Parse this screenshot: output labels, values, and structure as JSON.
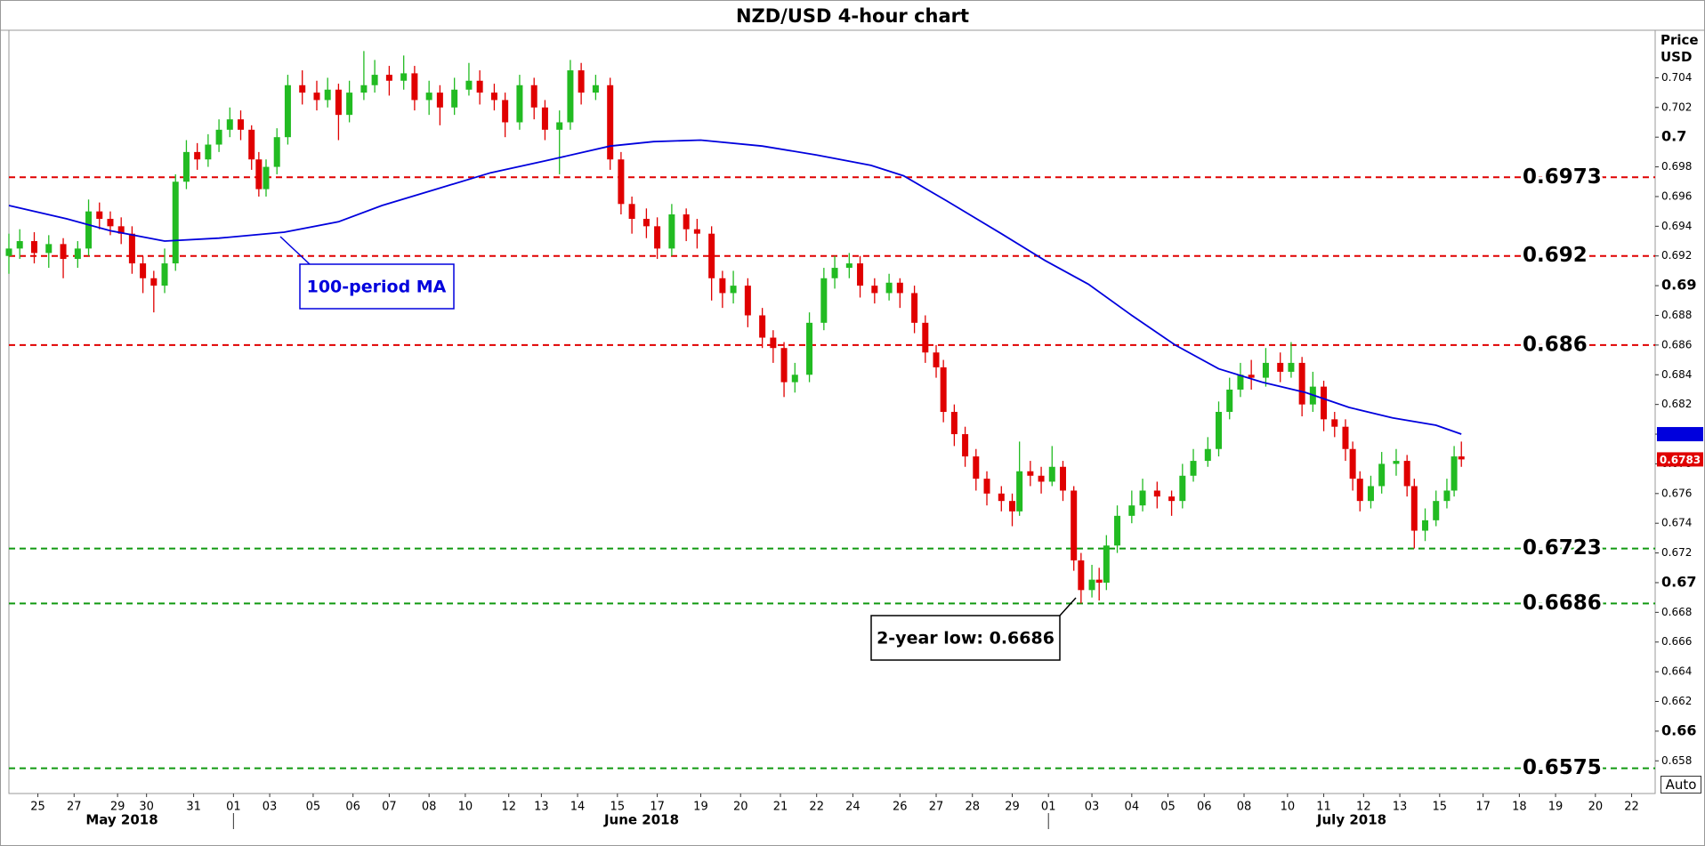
{
  "chart_data": {
    "type": "candlestick",
    "title": "NZD/USD 4-hour chart",
    "ylabel": "Price USD",
    "button": "Auto",
    "xlim": [
      -0.8,
      44.65
    ],
    "ylim": [
      0.6558,
      0.7072
    ],
    "xticks": [
      {
        "value": 0,
        "label": "25"
      },
      {
        "value": 1.0,
        "label": "27"
      },
      {
        "value": 2.2,
        "label": "29"
      },
      {
        "value": 3.0,
        "label": "30"
      },
      {
        "value": 4.3,
        "label": "31"
      },
      {
        "value": 5.4,
        "label": "01"
      },
      {
        "value": 6.4,
        "label": "03"
      },
      {
        "value": 7.6,
        "label": "05"
      },
      {
        "value": 8.7,
        "label": "06"
      },
      {
        "value": 9.7,
        "label": "07"
      },
      {
        "value": 10.8,
        "label": "08"
      },
      {
        "value": 11.8,
        "label": "10"
      },
      {
        "value": 13.0,
        "label": "12"
      },
      {
        "value": 13.9,
        "label": "13"
      },
      {
        "value": 14.9,
        "label": "14"
      },
      {
        "value": 16.0,
        "label": "15"
      },
      {
        "value": 17.1,
        "label": "17"
      },
      {
        "value": 18.3,
        "label": "19"
      },
      {
        "value": 19.4,
        "label": "20"
      },
      {
        "value": 20.5,
        "label": "21"
      },
      {
        "value": 21.5,
        "label": "22"
      },
      {
        "value": 22.5,
        "label": "24"
      },
      {
        "value": 23.8,
        "label": "26"
      },
      {
        "value": 24.8,
        "label": "27"
      },
      {
        "value": 25.8,
        "label": "28"
      },
      {
        "value": 26.9,
        "label": "29"
      },
      {
        "value": 27.9,
        "label": "01"
      },
      {
        "value": 29.1,
        "label": "03"
      },
      {
        "value": 30.2,
        "label": "04"
      },
      {
        "value": 31.2,
        "label": "05"
      },
      {
        "value": 32.2,
        "label": "06"
      },
      {
        "value": 33.3,
        "label": "08"
      },
      {
        "value": 34.5,
        "label": "10"
      },
      {
        "value": 35.5,
        "label": "11"
      },
      {
        "value": 36.6,
        "label": "12"
      },
      {
        "value": 37.6,
        "label": "13"
      },
      {
        "value": 38.7,
        "label": "15"
      },
      {
        "value": 39.9,
        "label": "17"
      },
      {
        "value": 40.9,
        "label": "18"
      },
      {
        "value": 41.9,
        "label": "19"
      },
      {
        "value": 43.0,
        "label": "20"
      },
      {
        "value": 44.0,
        "label": "22"
      }
    ],
    "months": [
      "May 2018",
      "June 2018",
      "July 2018"
    ],
    "yticks": [
      0.658,
      0.66,
      0.662,
      0.664,
      0.666,
      0.668,
      0.67,
      0.672,
      0.674,
      0.676,
      0.678,
      0.68,
      0.682,
      0.684,
      0.686,
      0.688,
      0.69,
      0.692,
      0.694,
      0.696,
      0.698,
      0.7,
      0.702,
      0.704
    ],
    "up_color": "#22bb22",
    "down_color": "#e00000",
    "candles": {
      "x": [
        -0.8,
        -0.5,
        -0.1,
        0.3,
        0.7,
        1.1,
        1.4,
        1.7,
        2.0,
        2.3,
        2.6,
        2.9,
        3.2,
        3.5,
        3.8,
        4.1,
        4.4,
        4.7,
        5.0,
        5.3,
        5.6,
        5.9,
        6.1,
        6.3,
        6.6,
        6.9,
        7.3,
        7.7,
        8.0,
        8.3,
        8.6,
        9.0,
        9.3,
        9.7,
        10.1,
        10.4,
        10.8,
        11.1,
        11.5,
        11.9,
        12.2,
        12.6,
        12.9,
        13.3,
        13.7,
        14.0,
        14.4,
        14.7,
        15.0,
        15.4,
        15.8,
        16.1,
        16.4,
        16.8,
        17.1,
        17.5,
        17.9,
        18.2,
        18.6,
        18.9,
        19.2,
        19.6,
        20.0,
        20.3,
        20.6,
        20.9,
        21.3,
        21.7,
        22.0,
        22.4,
        22.7,
        23.1,
        23.5,
        23.8,
        24.2,
        24.5,
        24.8,
        25.0,
        25.3,
        25.6,
        25.9,
        26.2,
        26.6,
        26.9,
        27.1,
        27.4,
        27.7,
        28.0,
        28.3,
        28.6,
        28.8,
        29.1,
        29.3,
        29.5,
        29.8,
        30.2,
        30.5,
        30.9,
        31.3,
        31.6,
        31.9,
        32.3,
        32.6,
        32.9,
        33.2,
        33.5,
        33.9,
        34.3,
        34.6,
        34.9,
        35.2,
        35.5,
        35.8,
        36.1,
        36.3,
        36.5,
        36.8,
        37.1,
        37.5,
        37.8,
        38.0,
        38.3,
        38.6,
        38.9,
        39.1,
        39.3
      ],
      "open": [
        0.692,
        0.6925,
        0.693,
        0.6922,
        0.6928,
        0.6918,
        0.6925,
        0.695,
        0.6945,
        0.694,
        0.6935,
        0.6915,
        0.6905,
        0.69,
        0.6915,
        0.697,
        0.699,
        0.6985,
        0.6995,
        0.7005,
        0.7012,
        0.7005,
        0.6985,
        0.6965,
        0.698,
        0.7,
        0.7035,
        0.703,
        0.7025,
        0.7032,
        0.7015,
        0.703,
        0.7035,
        0.7042,
        0.7038,
        0.7043,
        0.7025,
        0.703,
        0.702,
        0.7032,
        0.7038,
        0.703,
        0.7025,
        0.701,
        0.7035,
        0.702,
        0.7005,
        0.701,
        0.7045,
        0.703,
        0.7035,
        0.6985,
        0.6955,
        0.6945,
        0.694,
        0.6925,
        0.6948,
        0.6938,
        0.6935,
        0.6905,
        0.6895,
        0.69,
        0.688,
        0.6865,
        0.6858,
        0.6835,
        0.684,
        0.6875,
        0.6905,
        0.6912,
        0.6915,
        0.69,
        0.6895,
        0.6902,
        0.6895,
        0.6875,
        0.6855,
        0.6845,
        0.6815,
        0.68,
        0.6785,
        0.677,
        0.676,
        0.6755,
        0.6748,
        0.6775,
        0.6772,
        0.6768,
        0.6778,
        0.6762,
        0.6715,
        0.6695,
        0.6702,
        0.67,
        0.6725,
        0.6745,
        0.6752,
        0.6762,
        0.6758,
        0.6755,
        0.6772,
        0.6782,
        0.679,
        0.6815,
        0.683,
        0.684,
        0.6838,
        0.6848,
        0.6842,
        0.6848,
        0.682,
        0.6832,
        0.681,
        0.6805,
        0.679,
        0.677,
        0.6755,
        0.6765,
        0.678,
        0.6782,
        0.6765,
        0.6735,
        0.6742,
        0.6755,
        0.6762,
        0.6785
      ],
      "high": [
        0.6935,
        0.6938,
        0.6936,
        0.6934,
        0.6932,
        0.693,
        0.6958,
        0.6956,
        0.695,
        0.6946,
        0.694,
        0.692,
        0.691,
        0.6925,
        0.6975,
        0.6998,
        0.6996,
        0.7002,
        0.7012,
        0.702,
        0.7018,
        0.7008,
        0.699,
        0.6985,
        0.7006,
        0.7042,
        0.7045,
        0.7038,
        0.704,
        0.7036,
        0.7038,
        0.7058,
        0.7052,
        0.7048,
        0.7055,
        0.7048,
        0.7038,
        0.7035,
        0.704,
        0.705,
        0.7045,
        0.7036,
        0.703,
        0.7042,
        0.704,
        0.7025,
        0.7018,
        0.7052,
        0.705,
        0.7042,
        0.704,
        0.699,
        0.696,
        0.6952,
        0.6946,
        0.6955,
        0.6952,
        0.6945,
        0.694,
        0.691,
        0.691,
        0.6905,
        0.6885,
        0.687,
        0.6862,
        0.6848,
        0.6882,
        0.6912,
        0.692,
        0.6922,
        0.692,
        0.6905,
        0.6908,
        0.6905,
        0.69,
        0.688,
        0.686,
        0.685,
        0.682,
        0.6805,
        0.679,
        0.6775,
        0.6765,
        0.676,
        0.6795,
        0.6782,
        0.6778,
        0.6792,
        0.6782,
        0.6765,
        0.672,
        0.6712,
        0.671,
        0.6732,
        0.6752,
        0.6762,
        0.677,
        0.6768,
        0.6762,
        0.678,
        0.679,
        0.6798,
        0.6822,
        0.6838,
        0.6848,
        0.685,
        0.6858,
        0.6855,
        0.6862,
        0.6852,
        0.6842,
        0.6836,
        0.6815,
        0.681,
        0.6795,
        0.6775,
        0.6772,
        0.6788,
        0.679,
        0.6786,
        0.677,
        0.675,
        0.6762,
        0.677,
        0.6792,
        0.6795
      ],
      "low": [
        0.6908,
        0.6918,
        0.6915,
        0.6912,
        0.6905,
        0.6912,
        0.692,
        0.6938,
        0.6934,
        0.6928,
        0.6908,
        0.6895,
        0.6882,
        0.6895,
        0.691,
        0.6965,
        0.6978,
        0.698,
        0.699,
        0.7,
        0.6998,
        0.6978,
        0.696,
        0.696,
        0.6975,
        0.6995,
        0.7022,
        0.7018,
        0.702,
        0.6998,
        0.701,
        0.7025,
        0.703,
        0.7028,
        0.7032,
        0.7018,
        0.7015,
        0.7008,
        0.7015,
        0.7028,
        0.7022,
        0.7018,
        0.7,
        0.7005,
        0.7012,
        0.6998,
        0.6975,
        0.7005,
        0.7022,
        0.7025,
        0.6978,
        0.6948,
        0.6935,
        0.6932,
        0.6918,
        0.692,
        0.693,
        0.6925,
        0.689,
        0.6885,
        0.6888,
        0.6872,
        0.6858,
        0.6848,
        0.6825,
        0.6828,
        0.6835,
        0.687,
        0.6898,
        0.6905,
        0.6892,
        0.6888,
        0.689,
        0.6885,
        0.6868,
        0.6848,
        0.6838,
        0.6808,
        0.6792,
        0.6778,
        0.6762,
        0.6752,
        0.6748,
        0.6738,
        0.6745,
        0.6765,
        0.676,
        0.6765,
        0.6755,
        0.6708,
        0.6686,
        0.669,
        0.6688,
        0.6695,
        0.672,
        0.674,
        0.6748,
        0.675,
        0.6745,
        0.675,
        0.6768,
        0.6778,
        0.6785,
        0.681,
        0.6825,
        0.683,
        0.6832,
        0.6835,
        0.6838,
        0.6812,
        0.6815,
        0.6802,
        0.6798,
        0.6782,
        0.6762,
        0.6748,
        0.675,
        0.676,
        0.6772,
        0.6758,
        0.6723,
        0.6728,
        0.6738,
        0.675,
        0.6758,
        0.6778
      ],
      "close": [
        0.6925,
        0.693,
        0.6922,
        0.6928,
        0.6918,
        0.6925,
        0.695,
        0.6945,
        0.694,
        0.6935,
        0.6915,
        0.6905,
        0.69,
        0.6915,
        0.697,
        0.699,
        0.6985,
        0.6995,
        0.7005,
        0.7012,
        0.7005,
        0.6985,
        0.6965,
        0.698,
        0.7,
        0.7035,
        0.703,
        0.7025,
        0.7032,
        0.7015,
        0.703,
        0.7035,
        0.7042,
        0.7038,
        0.7043,
        0.7025,
        0.703,
        0.702,
        0.7032,
        0.7038,
        0.703,
        0.7025,
        0.701,
        0.7035,
        0.702,
        0.7005,
        0.701,
        0.7045,
        0.703,
        0.7035,
        0.6985,
        0.6955,
        0.6945,
        0.694,
        0.6925,
        0.6948,
        0.6938,
        0.6935,
        0.6905,
        0.6895,
        0.69,
        0.688,
        0.6865,
        0.6858,
        0.6835,
        0.684,
        0.6875,
        0.6905,
        0.6912,
        0.6915,
        0.69,
        0.6895,
        0.6902,
        0.6895,
        0.6875,
        0.6855,
        0.6845,
        0.6815,
        0.68,
        0.6785,
        0.677,
        0.676,
        0.6755,
        0.6748,
        0.6775,
        0.6772,
        0.6768,
        0.6778,
        0.6762,
        0.6715,
        0.6695,
        0.6702,
        0.67,
        0.6725,
        0.6745,
        0.6752,
        0.6762,
        0.6758,
        0.6755,
        0.6772,
        0.6782,
        0.679,
        0.6815,
        0.683,
        0.684,
        0.6838,
        0.6848,
        0.6842,
        0.6848,
        0.682,
        0.6832,
        0.681,
        0.6805,
        0.679,
        0.677,
        0.6755,
        0.6765,
        0.678,
        0.6782,
        0.6765,
        0.6735,
        0.6742,
        0.6755,
        0.6762,
        0.6785,
        0.6783
      ]
    },
    "moving_average": {
      "name": "100-period MA",
      "color": "#0000dd",
      "x": [
        -0.8,
        0.8,
        2.0,
        3.5,
        5.0,
        6.8,
        8.3,
        9.5,
        11.0,
        12.5,
        14.0,
        15.8,
        17.0,
        18.3,
        20.0,
        21.5,
        23.0,
        23.9,
        25.1,
        26.6,
        27.8,
        29.0,
        30.2,
        31.4,
        32.6,
        33.8,
        35.0,
        36.2,
        37.4,
        38.6,
        39.3
      ],
      "values": [
        0.6954,
        0.6945,
        0.6937,
        0.693,
        0.6932,
        0.6936,
        0.6943,
        0.6954,
        0.6965,
        0.6976,
        0.6984,
        0.6994,
        0.6997,
        0.6998,
        0.6994,
        0.6988,
        0.6981,
        0.6974,
        0.6957,
        0.6935,
        0.6917,
        0.6901,
        0.688,
        0.686,
        0.6844,
        0.6835,
        0.6828,
        0.6818,
        0.6811,
        0.6806,
        0.68
      ]
    },
    "last_price": 0.6783,
    "levels": [
      {
        "value": 0.6973,
        "color": "#e00000"
      },
      {
        "value": 0.692,
        "color": "#e00000"
      },
      {
        "value": 0.686,
        "color": "#e00000"
      },
      {
        "value": 0.6723,
        "color": "#119911"
      },
      {
        "value": 0.6686,
        "color": "#119911"
      },
      {
        "value": 0.6575,
        "color": "#119911"
      }
    ],
    "annotations": [
      {
        "text": "100-period MA"
      },
      {
        "text": "2-year low: 0.6686"
      }
    ]
  }
}
